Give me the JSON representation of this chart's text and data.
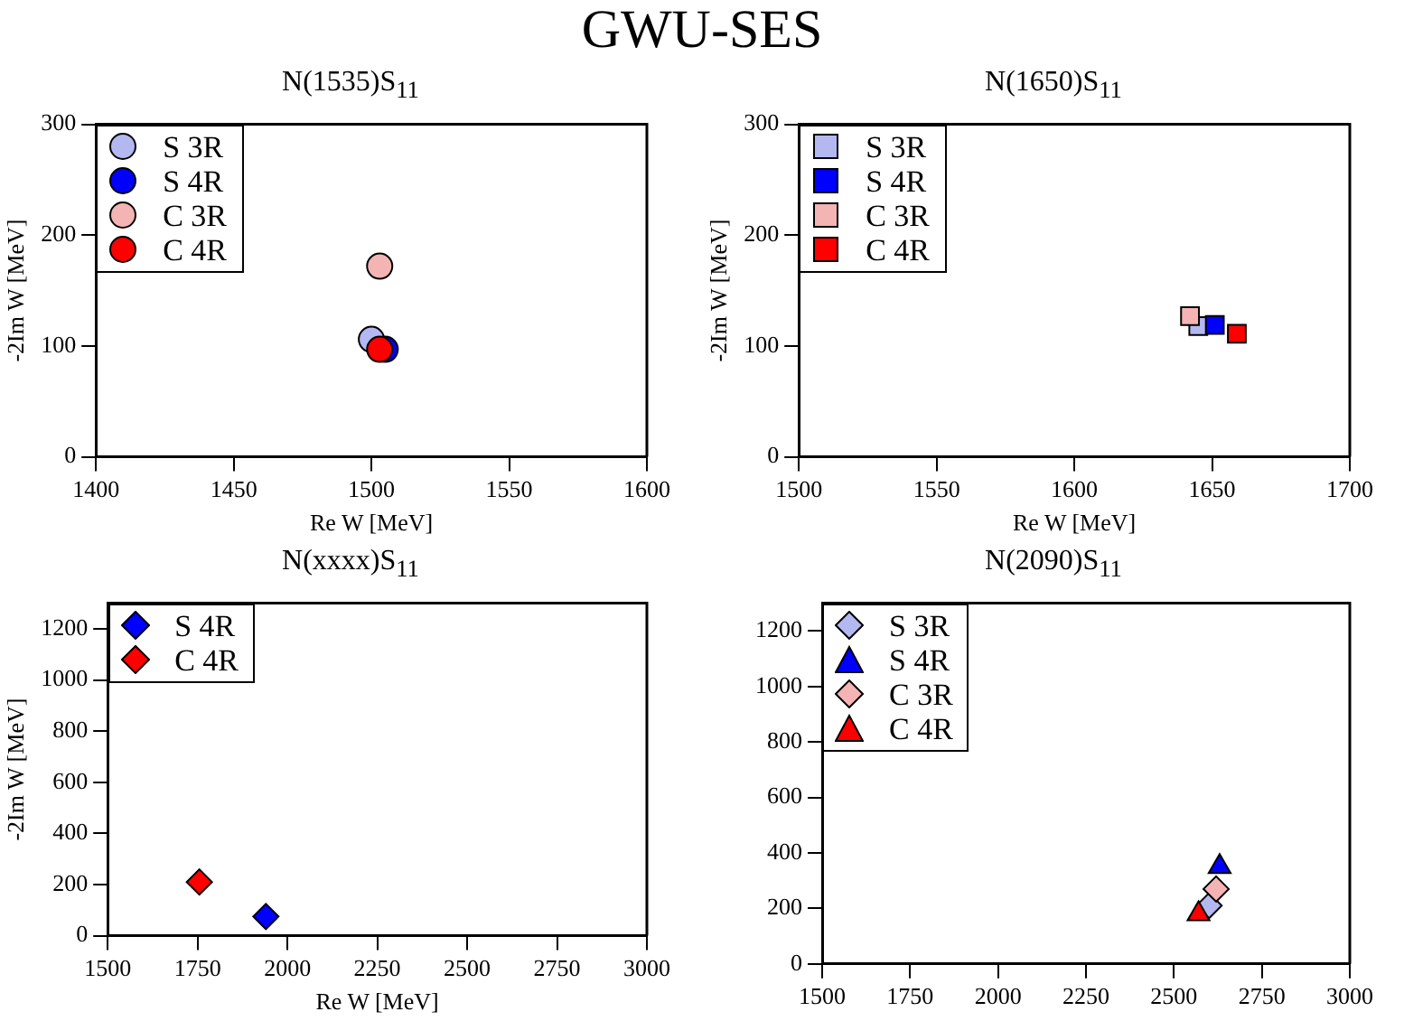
{
  "chart_data": [
    {
      "type": "other",
      "title": "GWU-SES"
    },
    {
      "type": "scatter",
      "title": "N(1535)S$_{11}$",
      "xlabel": "Re W [MeV]",
      "ylabel": "-2Im W [MeV]",
      "xlim": [
        1400,
        1600
      ],
      "xticks": [
        1400,
        1450,
        1500,
        1550,
        1600
      ],
      "ylim": [
        0,
        300
      ],
      "yticks": [
        0,
        100,
        200,
        300
      ],
      "legend": "top left",
      "series": [
        {
          "name": "S 3R",
          "color": "#b4b8f0",
          "marker": "circle",
          "x": [
            1500
          ],
          "values": [
            106
          ]
        },
        {
          "name": "S 4R",
          "color": "#0000ff",
          "marker": "circle",
          "x": [
            1505
          ],
          "values": [
            97
          ]
        },
        {
          "name": "C 3R",
          "color": "#f4b4b4",
          "marker": "circle",
          "x": [
            1503
          ],
          "values": [
            172
          ]
        },
        {
          "name": "C 4R",
          "color": "#ff0000",
          "marker": "circle",
          "x": [
            1503
          ],
          "values": [
            97
          ]
        }
      ]
    },
    {
      "type": "scatter",
      "title": "N(1650)S$_{11}$",
      "xlabel": "Re W [MeV]",
      "ylabel": "-2Im W [MeV]",
      "xlim": [
        1500,
        1700
      ],
      "xticks": [
        1500,
        1550,
        1600,
        1650,
        1700
      ],
      "ylim": [
        0,
        300
      ],
      "yticks": [
        0,
        100,
        200,
        300
      ],
      "legend": "top left",
      "series": [
        {
          "name": "S 3R",
          "color": "#b4b8f0",
          "marker": "square",
          "x": [
            1645
          ],
          "values": [
            118
          ]
        },
        {
          "name": "S 4R",
          "color": "#0000ff",
          "marker": "square",
          "x": [
            1651
          ],
          "values": [
            119
          ]
        },
        {
          "name": "C 3R",
          "color": "#f4b4b4",
          "marker": "square",
          "x": [
            1642
          ],
          "values": [
            127
          ]
        },
        {
          "name": "C 4R",
          "color": "#ff0000",
          "marker": "square",
          "x": [
            1659
          ],
          "values": [
            111
          ]
        }
      ]
    },
    {
      "type": "scatter",
      "title": "N(xxxx)S$_{11}$",
      "xlabel": "Re W [MeV]",
      "ylabel": "-2Im W [MeV]",
      "xlim": [
        1500,
        3000
      ],
      "xticks": [
        1500,
        1750,
        2000,
        2250,
        2500,
        2750,
        3000
      ],
      "ylim": [
        0,
        1300
      ],
      "yticks": [
        0,
        200,
        400,
        600,
        800,
        1000,
        1200
      ],
      "legend": "top left",
      "series": [
        {
          "name": "S 4R",
          "color": "#0000ff",
          "marker": "diamond",
          "x": [
            1940
          ],
          "values": [
            75
          ]
        },
        {
          "name": "C 4R",
          "color": "#ff0000",
          "marker": "diamond",
          "x": [
            1755
          ],
          "values": [
            210
          ]
        }
      ]
    },
    {
      "type": "scatter",
      "title": "N(2090)S$_{11}$",
      "xlim": [
        1500,
        3000
      ],
      "xticks": [
        1500,
        1750,
        2000,
        2250,
        2500,
        2750,
        3000
      ],
      "ylim": [
        0,
        1300
      ],
      "yticks": [
        0,
        200,
        400,
        600,
        800,
        1000,
        1200
      ],
      "legend": "top left",
      "series": [
        {
          "name": "S 3R",
          "color": "#b4b8f0",
          "marker": "diamond",
          "x": [
            2600
          ],
          "values": [
            210
          ]
        },
        {
          "name": "S 4R",
          "color": "#0000ff",
          "marker": "triangle",
          "x": [
            2630
          ],
          "values": [
            350
          ]
        },
        {
          "name": "C 3R",
          "color": "#f4b4b4",
          "marker": "diamond",
          "x": [
            2620
          ],
          "values": [
            270
          ]
        },
        {
          "name": "C 4R",
          "color": "#ff0000",
          "marker": "triangle",
          "x": [
            2570
          ],
          "values": [
            180
          ]
        }
      ]
    }
  ]
}
